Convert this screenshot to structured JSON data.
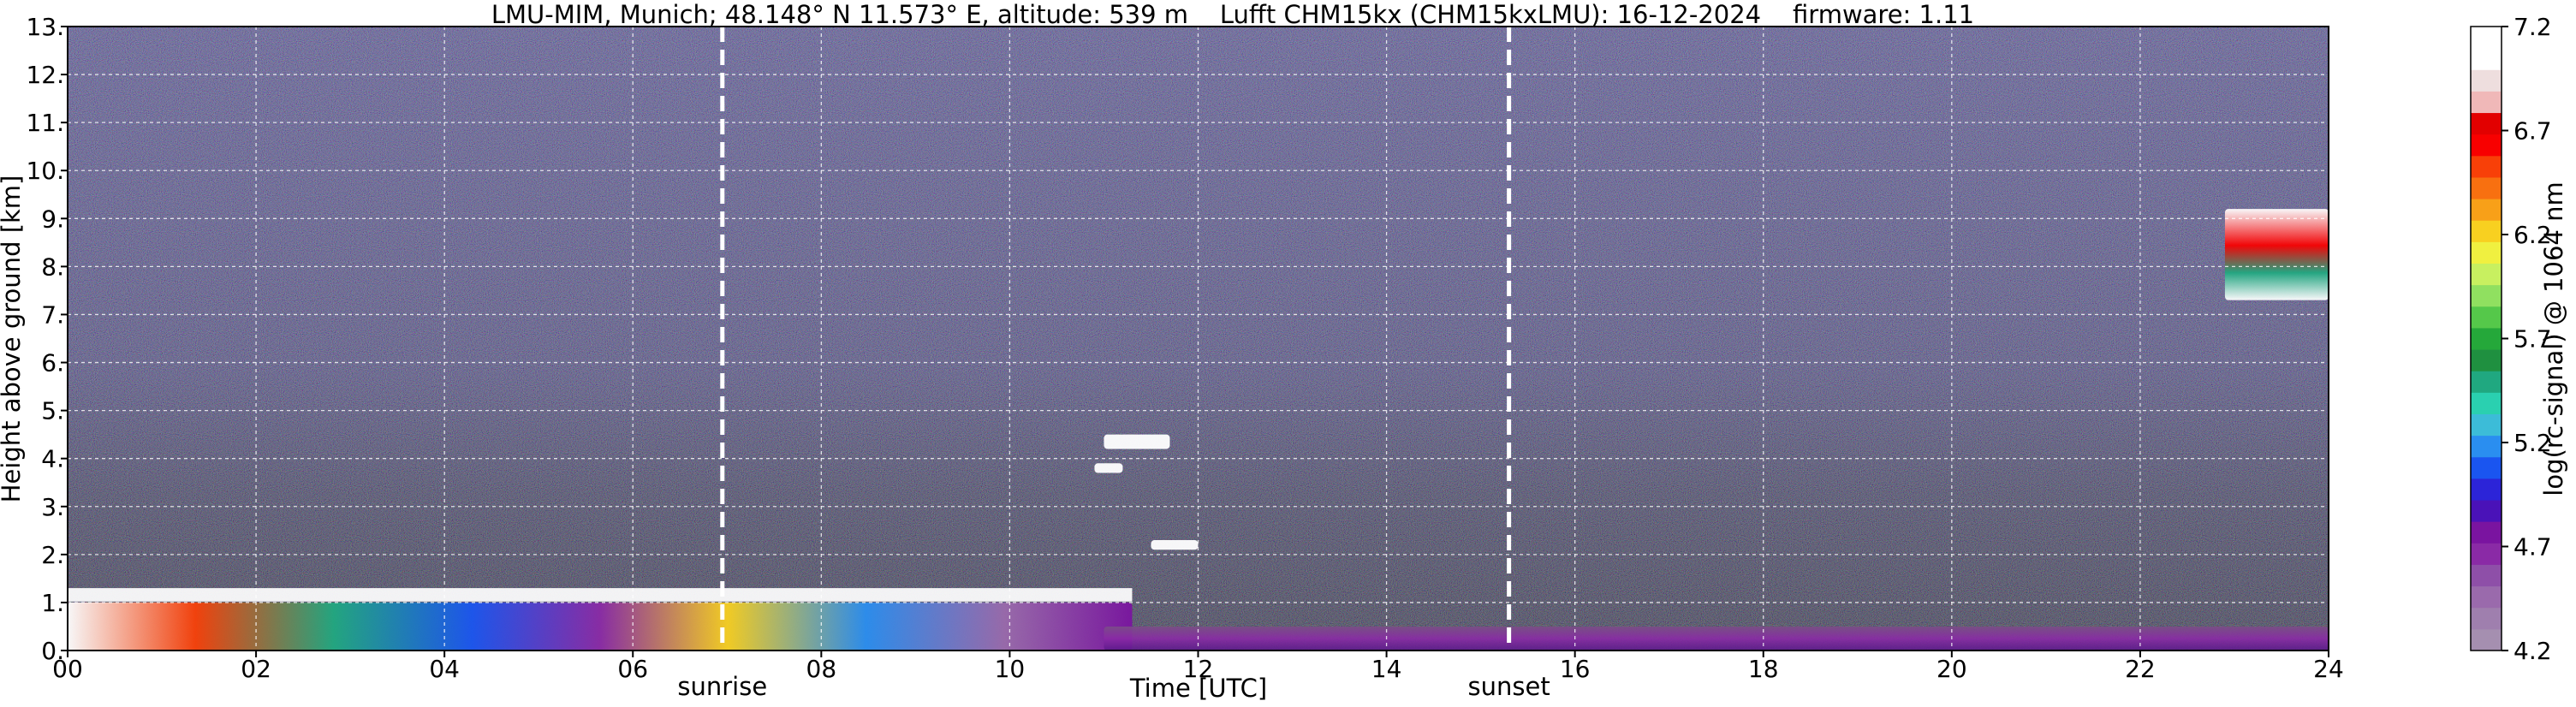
{
  "header": {
    "title": "LMU-MIM, Munich; 48.148° N 11.573° E, altitude: 539 m    Lufft CHM15kx (CHM15kxLMU): 16-12-2024    firmware: 1.11"
  },
  "chart_data": {
    "type": "heatmap",
    "title": "LMU-MIM, Munich; 48.148° N 11.573° E, altitude: 539 m    Lufft CHM15kx (CHM15kxLMU): 16-12-2024    firmware: 1.11",
    "xlabel": "Time [UTC]",
    "ylabel": "Height above ground [km]",
    "xlim": [
      0,
      24
    ],
    "ylim": [
      0,
      13
    ],
    "grid": true,
    "x_ticks": [
      {
        "value": 0,
        "label": "00"
      },
      {
        "value": 2,
        "label": "02"
      },
      {
        "value": 4,
        "label": "04"
      },
      {
        "value": 6,
        "label": "06"
      },
      {
        "value": 8,
        "label": "08"
      },
      {
        "value": 10,
        "label": "10"
      },
      {
        "value": 12,
        "label": "12"
      },
      {
        "value": 14,
        "label": "14"
      },
      {
        "value": 16,
        "label": "16"
      },
      {
        "value": 18,
        "label": "18"
      },
      {
        "value": 20,
        "label": "20"
      },
      {
        "value": 22,
        "label": "22"
      },
      {
        "value": 24,
        "label": "24"
      }
    ],
    "y_ticks": [
      {
        "value": 0,
        "label": "0."
      },
      {
        "value": 1,
        "label": "1."
      },
      {
        "value": 2,
        "label": "2."
      },
      {
        "value": 3,
        "label": "3."
      },
      {
        "value": 4,
        "label": "4."
      },
      {
        "value": 5,
        "label": "5."
      },
      {
        "value": 6,
        "label": "6."
      },
      {
        "value": 7,
        "label": "7."
      },
      {
        "value": 8,
        "label": "8."
      },
      {
        "value": 9,
        "label": "9."
      },
      {
        "value": 10,
        "label": "10."
      },
      {
        "value": 11,
        "label": "11."
      },
      {
        "value": 12,
        "label": "12."
      },
      {
        "value": 13,
        "label": "13."
      }
    ],
    "events": [
      {
        "name": "sunrise",
        "time": 6.95
      },
      {
        "name": "sunset",
        "time": 15.3
      }
    ],
    "colorbar": {
      "label": "log(rc-signal) @ 1064 nm",
      "range": [
        4.2,
        7.2
      ],
      "ticks": [
        {
          "value": 4.2,
          "label": "4.2"
        },
        {
          "value": 4.7,
          "label": "4.7"
        },
        {
          "value": 5.2,
          "label": "5.2"
        },
        {
          "value": 5.7,
          "label": "5.7"
        },
        {
          "value": 6.2,
          "label": "6.2"
        },
        {
          "value": 6.7,
          "label": "6.7"
        },
        {
          "value": 7.2,
          "label": "7.2"
        }
      ],
      "colors": [
        "#a58fb0",
        "#9f7fae",
        "#9a6aac",
        "#8e4fa8",
        "#8a2aa6",
        "#7a14a0",
        "#4a12b8",
        "#2c24d8",
        "#1a55f0",
        "#2a8ef0",
        "#3cbcd8",
        "#2ad0b0",
        "#20a880",
        "#1f9040",
        "#25a83a",
        "#55c84a",
        "#90e060",
        "#c8f060",
        "#f0f040",
        "#f8d020",
        "#f8a018",
        "#f87010",
        "#f84008",
        "#f80000",
        "#e20000",
        "#f0b8b8",
        "#eedede",
        "#ffffff",
        "#ffffff"
      ]
    },
    "features": [
      {
        "kind": "boundary layer / aerosol",
        "t_start": 0,
        "t_end": 11.3,
        "h_bottom": 0.0,
        "h_top": 1.0
      },
      {
        "kind": "low cloud layer",
        "t_start": 0,
        "t_end": 11.3,
        "h_bottom": 0.5,
        "h_top": 1.3
      },
      {
        "kind": "elevated aerosol",
        "t_start": 11.0,
        "t_end": 24,
        "h_bottom": 0.0,
        "h_top": 0.5
      },
      {
        "kind": "cloud",
        "t_start": 11.5,
        "t_end": 12.0,
        "h_bottom": 2.1,
        "h_top": 2.3
      },
      {
        "kind": "cloud",
        "t_start": 11.0,
        "t_end": 11.7,
        "h_bottom": 4.2,
        "h_top": 4.5
      },
      {
        "kind": "cloud",
        "t_start": 10.9,
        "t_end": 11.2,
        "h_bottom": 3.7,
        "h_top": 3.9
      },
      {
        "kind": "cirrus",
        "t_start": 22.9,
        "t_end": 24,
        "h_bottom": 7.3,
        "h_top": 9.2
      }
    ]
  }
}
